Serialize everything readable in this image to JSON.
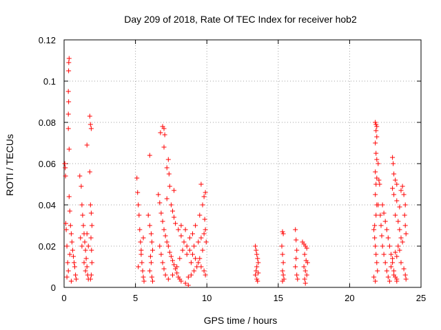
{
  "chart_data": {
    "type": "scatter",
    "title": "Day 209 of 2018, Rate Of TEC Index for receiver hob2",
    "xlabel": "GPS time / hours",
    "ylabel": "ROTI / TECUs",
    "xlim": [
      0,
      25
    ],
    "ylim": [
      0,
      0.12
    ],
    "xticks": [
      "0",
      "5",
      "10",
      "15",
      "20",
      "25"
    ],
    "yticks": [
      "0",
      "0.02",
      "0.04",
      "0.06",
      "0.08",
      "0.1",
      "0.12"
    ],
    "grid": true,
    "marker": "+",
    "color": "#ff0000",
    "series": [
      {
        "points": [
          [
            0.05,
            0.06
          ],
          [
            0.08,
            0.058
          ],
          [
            0.1,
            0.054
          ],
          [
            0.12,
            0.031
          ],
          [
            0.15,
            0.028
          ],
          [
            0.2,
            0.02
          ],
          [
            0.25,
            0.012
          ],
          [
            0.3,
            0.008
          ],
          [
            0.35,
            0.111
          ],
          [
            0.33,
            0.109
          ],
          [
            0.32,
            0.105
          ],
          [
            0.3,
            0.095
          ],
          [
            0.32,
            0.09
          ],
          [
            0.3,
            0.084
          ],
          [
            0.3,
            0.077
          ],
          [
            0.35,
            0.067
          ],
          [
            0.35,
            0.044
          ],
          [
            0.4,
            0.037
          ],
          [
            0.45,
            0.03
          ],
          [
            0.5,
            0.026
          ],
          [
            0.55,
            0.022
          ],
          [
            0.6,
            0.018
          ],
          [
            0.65,
            0.015
          ],
          [
            0.7,
            0.012
          ],
          [
            0.75,
            0.01
          ],
          [
            0.8,
            0.006
          ],
          [
            0.85,
            0.004
          ],
          [
            0.5,
            0.003
          ],
          [
            0.2,
            0.005
          ],
          [
            0.4,
            0.016
          ],
          [
            1.1,
            0.054
          ],
          [
            1.2,
            0.049
          ],
          [
            1.25,
            0.04
          ],
          [
            1.3,
            0.035
          ],
          [
            1.35,
            0.03
          ],
          [
            1.4,
            0.026
          ],
          [
            1.45,
            0.022
          ],
          [
            1.5,
            0.018
          ],
          [
            1.55,
            0.014
          ],
          [
            1.6,
            0.01
          ],
          [
            1.65,
            0.006
          ],
          [
            1.7,
            0.004
          ],
          [
            1.15,
            0.024
          ],
          [
            1.25,
            0.02
          ],
          [
            1.4,
            0.012
          ],
          [
            1.5,
            0.008
          ],
          [
            1.6,
            0.026
          ],
          [
            1.7,
            0.02
          ],
          [
            1.6,
            0.069
          ],
          [
            1.8,
            0.083
          ],
          [
            1.85,
            0.079
          ],
          [
            1.9,
            0.077
          ],
          [
            1.8,
            0.056
          ],
          [
            1.85,
            0.04
          ],
          [
            1.9,
            0.036
          ],
          [
            1.95,
            0.03
          ],
          [
            1.88,
            0.024
          ],
          [
            1.92,
            0.018
          ],
          [
            1.95,
            0.012
          ],
          [
            1.9,
            0.006
          ],
          [
            1.85,
            0.004
          ],
          [
            5.1,
            0.053
          ],
          [
            5.15,
            0.046
          ],
          [
            5.2,
            0.04
          ],
          [
            5.25,
            0.035
          ],
          [
            5.3,
            0.028
          ],
          [
            5.35,
            0.022
          ],
          [
            5.4,
            0.016
          ],
          [
            5.45,
            0.012
          ],
          [
            5.5,
            0.008
          ],
          [
            5.55,
            0.005
          ],
          [
            5.6,
            0.003
          ],
          [
            5.2,
            0.01
          ],
          [
            5.4,
            0.018
          ],
          [
            5.55,
            0.024
          ],
          [
            6.0,
            0.064
          ],
          [
            5.9,
            0.035
          ],
          [
            6.0,
            0.03
          ],
          [
            6.1,
            0.026
          ],
          [
            6.15,
            0.022
          ],
          [
            6.2,
            0.018
          ],
          [
            6.1,
            0.012
          ],
          [
            6.0,
            0.008
          ],
          [
            6.15,
            0.005
          ],
          [
            6.2,
            0.003
          ],
          [
            6.05,
            0.015
          ],
          [
            6.6,
            0.045
          ],
          [
            6.7,
            0.041
          ],
          [
            6.75,
            0.075
          ],
          [
            6.9,
            0.078
          ],
          [
            7.0,
            0.077
          ],
          [
            7.05,
            0.074
          ],
          [
            7.0,
            0.068
          ],
          [
            6.8,
            0.036
          ],
          [
            6.9,
            0.032
          ],
          [
            7.0,
            0.028
          ],
          [
            7.1,
            0.025
          ],
          [
            7.2,
            0.022
          ],
          [
            7.3,
            0.02
          ],
          [
            7.4,
            0.017
          ],
          [
            7.5,
            0.015
          ],
          [
            7.6,
            0.013
          ],
          [
            7.7,
            0.011
          ],
          [
            7.8,
            0.009
          ],
          [
            7.9,
            0.007
          ],
          [
            8.0,
            0.005
          ],
          [
            8.1,
            0.004
          ],
          [
            8.2,
            0.003
          ],
          [
            8.5,
            0.002
          ],
          [
            8.7,
            0.001
          ],
          [
            7.2,
            0.058
          ],
          [
            7.3,
            0.062
          ],
          [
            7.35,
            0.055
          ],
          [
            7.4,
            0.049
          ],
          [
            7.2,
            0.043
          ],
          [
            7.5,
            0.04
          ],
          [
            7.6,
            0.037
          ],
          [
            7.7,
            0.034
          ],
          [
            7.8,
            0.031
          ],
          [
            8.0,
            0.028
          ],
          [
            8.2,
            0.025
          ],
          [
            8.4,
            0.022
          ],
          [
            8.6,
            0.02
          ],
          [
            8.8,
            0.018
          ],
          [
            9.0,
            0.016
          ],
          [
            9.2,
            0.014
          ],
          [
            9.4,
            0.012
          ],
          [
            9.6,
            0.01
          ],
          [
            9.8,
            0.008
          ],
          [
            9.9,
            0.006
          ],
          [
            7.7,
            0.047
          ],
          [
            8.2,
            0.03
          ],
          [
            8.5,
            0.028
          ],
          [
            8.8,
            0.024
          ],
          [
            9.0,
            0.026
          ],
          [
            9.2,
            0.03
          ],
          [
            9.5,
            0.035
          ],
          [
            9.7,
            0.04
          ],
          [
            9.8,
            0.044
          ],
          [
            9.6,
            0.05
          ],
          [
            9.9,
            0.046
          ],
          [
            9.85,
            0.033
          ],
          [
            9.9,
            0.028
          ],
          [
            9.95,
            0.022
          ],
          [
            9.7,
            0.018
          ],
          [
            9.5,
            0.014
          ],
          [
            9.3,
            0.01
          ],
          [
            9.1,
            0.008
          ],
          [
            8.9,
            0.006
          ],
          [
            8.7,
            0.005
          ],
          [
            6.7,
            0.02
          ],
          [
            6.8,
            0.016
          ],
          [
            6.9,
            0.012
          ],
          [
            7.0,
            0.009
          ],
          [
            7.1,
            0.006
          ],
          [
            7.3,
            0.004
          ],
          [
            7.6,
            0.006
          ],
          [
            7.9,
            0.01
          ],
          [
            8.1,
            0.014
          ],
          [
            8.3,
            0.018
          ],
          [
            8.6,
            0.016
          ],
          [
            8.9,
            0.012
          ],
          [
            9.1,
            0.02
          ],
          [
            9.4,
            0.022
          ],
          [
            9.6,
            0.024
          ],
          [
            9.8,
            0.026
          ],
          [
            13.4,
            0.02
          ],
          [
            13.45,
            0.018
          ],
          [
            13.5,
            0.016
          ],
          [
            13.55,
            0.014
          ],
          [
            13.6,
            0.012
          ],
          [
            13.5,
            0.01
          ],
          [
            13.45,
            0.008
          ],
          [
            13.4,
            0.006
          ],
          [
            13.5,
            0.004
          ],
          [
            13.55,
            0.003
          ],
          [
            13.6,
            0.007
          ],
          [
            15.3,
            0.027
          ],
          [
            15.35,
            0.026
          ],
          [
            15.25,
            0.02
          ],
          [
            15.3,
            0.016
          ],
          [
            15.35,
            0.012
          ],
          [
            15.3,
            0.008
          ],
          [
            15.35,
            0.006
          ],
          [
            15.4,
            0.004
          ],
          [
            15.3,
            0.003
          ],
          [
            16.2,
            0.028
          ],
          [
            16.25,
            0.023
          ],
          [
            16.3,
            0.018
          ],
          [
            16.25,
            0.014
          ],
          [
            16.2,
            0.01
          ],
          [
            16.3,
            0.006
          ],
          [
            16.35,
            0.004
          ],
          [
            16.7,
            0.022
          ],
          [
            16.8,
            0.021
          ],
          [
            16.9,
            0.02
          ],
          [
            17.0,
            0.019
          ],
          [
            16.85,
            0.016
          ],
          [
            16.95,
            0.013
          ],
          [
            16.8,
            0.01
          ],
          [
            16.9,
            0.008
          ],
          [
            17.0,
            0.006
          ],
          [
            16.85,
            0.004
          ],
          [
            16.9,
            0.002
          ],
          [
            17.05,
            0.012
          ],
          [
            21.8,
            0.08
          ],
          [
            21.85,
            0.079
          ],
          [
            21.9,
            0.078
          ],
          [
            21.85,
            0.076
          ],
          [
            21.9,
            0.073
          ],
          [
            21.8,
            0.07
          ],
          [
            21.85,
            0.065
          ],
          [
            21.9,
            0.062
          ],
          [
            21.8,
            0.056
          ],
          [
            21.9,
            0.053
          ],
          [
            21.85,
            0.05
          ],
          [
            21.8,
            0.045
          ],
          [
            21.9,
            0.04
          ],
          [
            21.85,
            0.035
          ],
          [
            21.75,
            0.03
          ],
          [
            21.7,
            0.028
          ],
          [
            21.75,
            0.024
          ],
          [
            21.8,
            0.02
          ],
          [
            21.85,
            0.016
          ],
          [
            21.9,
            0.012
          ],
          [
            21.95,
            0.008
          ],
          [
            21.7,
            0.005
          ],
          [
            21.8,
            0.003
          ],
          [
            22.0,
            0.06
          ],
          [
            22.05,
            0.052
          ],
          [
            22.1,
            0.05
          ],
          [
            22.0,
            0.04
          ],
          [
            22.15,
            0.035
          ],
          [
            22.2,
            0.03
          ],
          [
            22.25,
            0.025
          ],
          [
            22.3,
            0.02
          ],
          [
            22.4,
            0.016
          ],
          [
            22.5,
            0.012
          ],
          [
            22.6,
            0.008
          ],
          [
            22.7,
            0.005
          ],
          [
            22.8,
            0.003
          ],
          [
            22.3,
            0.04
          ],
          [
            22.4,
            0.036
          ],
          [
            22.5,
            0.032
          ],
          [
            22.6,
            0.028
          ],
          [
            22.7,
            0.024
          ],
          [
            22.8,
            0.02
          ],
          [
            22.9,
            0.016
          ],
          [
            23.0,
            0.012
          ],
          [
            23.1,
            0.008
          ],
          [
            23.2,
            0.005
          ],
          [
            23.3,
            0.003
          ],
          [
            23.0,
            0.063
          ],
          [
            23.05,
            0.06
          ],
          [
            23.1,
            0.055
          ],
          [
            23.2,
            0.052
          ],
          [
            23.3,
            0.05
          ],
          [
            23.0,
            0.048
          ],
          [
            23.1,
            0.045
          ],
          [
            23.3,
            0.042
          ],
          [
            23.5,
            0.039
          ],
          [
            23.6,
            0.047
          ],
          [
            23.7,
            0.049
          ],
          [
            23.8,
            0.045
          ],
          [
            23.9,
            0.04
          ],
          [
            23.85,
            0.035
          ],
          [
            23.9,
            0.03
          ],
          [
            23.95,
            0.026
          ],
          [
            23.7,
            0.022
          ],
          [
            23.5,
            0.018
          ],
          [
            23.3,
            0.015
          ],
          [
            23.6,
            0.012
          ],
          [
            23.8,
            0.009
          ],
          [
            23.9,
            0.006
          ],
          [
            23.95,
            0.004
          ],
          [
            23.2,
            0.035
          ],
          [
            23.4,
            0.032
          ],
          [
            23.5,
            0.028
          ],
          [
            23.6,
            0.024
          ],
          [
            23.4,
            0.02
          ],
          [
            23.2,
            0.017
          ],
          [
            23.0,
            0.014
          ],
          [
            22.9,
            0.01
          ],
          [
            23.1,
            0.006
          ],
          [
            23.3,
            0.004
          ]
        ]
      }
    ]
  }
}
